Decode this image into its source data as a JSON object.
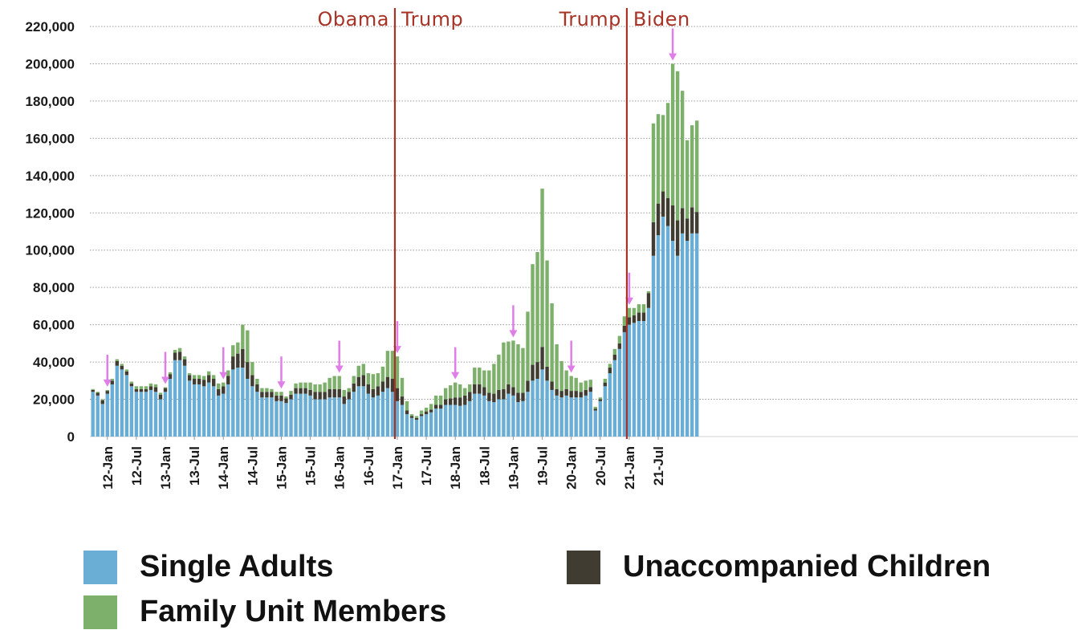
{
  "chart_data": {
    "type": "bar",
    "stacked": true,
    "title": "",
    "xlabel": "",
    "ylabel": "",
    "ylim": [
      0,
      220000
    ],
    "y_ticks": [
      0,
      20000,
      40000,
      60000,
      80000,
      100000,
      120000,
      140000,
      160000,
      180000,
      200000,
      220000
    ],
    "y_tick_labels": [
      "0",
      "20,000",
      "40,000",
      "60,000",
      "80,000",
      "100,000",
      "120,000",
      "140,000",
      "160,000",
      "180,000",
      "200,000",
      "220,000"
    ],
    "grid": "horizontal dotted",
    "x_start": "2011-10",
    "x_end": "2021-10",
    "x_tick_labels": [
      {
        "label": "12-Jan",
        "month": "2012-01"
      },
      {
        "label": "12-Jul",
        "month": "2012-07"
      },
      {
        "label": "13-Jan",
        "month": "2013-01"
      },
      {
        "label": "13-Jul",
        "month": "2013-07"
      },
      {
        "label": "14-Jan",
        "month": "2014-01"
      },
      {
        "label": "14-Jul",
        "month": "2014-07"
      },
      {
        "label": "15-Jan",
        "month": "2015-01"
      },
      {
        "label": "15-Jul",
        "month": "2015-07"
      },
      {
        "label": "16-Jan",
        "month": "2016-01"
      },
      {
        "label": "16-Jul",
        "month": "2016-07"
      },
      {
        "label": "17-Jan",
        "month": "2017-01"
      },
      {
        "label": "17-Jul",
        "month": "2017-07"
      },
      {
        "label": "18-Jan",
        "month": "2018-01"
      },
      {
        "label": "18-Jul",
        "month": "2018-07"
      },
      {
        "label": "19-Jan",
        "month": "2019-01"
      },
      {
        "label": "19-Jul",
        "month": "2019-07"
      },
      {
        "label": "20-Jan",
        "month": "2020-01"
      },
      {
        "label": "20-Jul",
        "month": "2020-07"
      },
      {
        "label": "21-Jan",
        "month": "2021-01"
      },
      {
        "label": "21-Jul",
        "month": "2021-07"
      }
    ],
    "series": [
      {
        "name": "Single Adults",
        "color": "#6aaed6",
        "values": [
          24000,
          22000,
          17500,
          23000,
          28000,
          38000,
          36000,
          33000,
          27000,
          24000,
          24000,
          24000,
          25000,
          24000,
          20000,
          24000,
          31000,
          41000,
          41000,
          38000,
          30000,
          28000,
          28000,
          27000,
          29000,
          27000,
          22000,
          23000,
          28000,
          36000,
          37000,
          37000,
          31000,
          27000,
          24000,
          21000,
          21000,
          21000,
          19000,
          19000,
          18000,
          20000,
          23000,
          23000,
          23000,
          22000,
          20000,
          20000,
          20000,
          21000,
          21000,
          21000,
          17500,
          20000,
          24000,
          27000,
          27000,
          23000,
          21000,
          22000,
          24000,
          26000,
          24000,
          19000,
          17000,
          12000,
          10000,
          9000,
          11000,
          12000,
          13000,
          15000,
          15000,
          17000,
          17000,
          17000,
          16500,
          17000,
          19000,
          23000,
          23000,
          22000,
          19000,
          18500,
          20000,
          20000,
          23000,
          22000,
          18500,
          19000,
          24000,
          30000,
          31000,
          36000,
          30000,
          25000,
          22000,
          21000,
          22000,
          21000,
          21000,
          21000,
          22000,
          24000,
          14000,
          19000,
          27000,
          34000,
          41000,
          47000,
          56000,
          60000,
          61000,
          62000,
          62000,
          69000,
          97000,
          108000,
          118000,
          113000,
          105000,
          97000,
          109000,
          105000,
          109000,
          109000
        ]
      },
      {
        "name": "Unaccompanied Children",
        "color": "#403c32",
        "values": [
          1000,
          1500,
          2000,
          1500,
          2000,
          2500,
          2000,
          2000,
          1500,
          1500,
          1500,
          1500,
          2000,
          2500,
          2500,
          2000,
          2500,
          4000,
          4500,
          3500,
          3000,
          3000,
          3000,
          3500,
          4000,
          4000,
          3500,
          4000,
          4500,
          7000,
          7500,
          10000,
          9000,
          6000,
          4000,
          3000,
          3000,
          3000,
          3000,
          3000,
          2500,
          2500,
          3000,
          3000,
          3000,
          3000,
          4000,
          4000,
          4000,
          4500,
          4500,
          4500,
          4000,
          4000,
          4500,
          5000,
          6000,
          5000,
          4500,
          5000,
          5500,
          6000,
          7000,
          7000,
          4500,
          2000,
          1000,
          1000,
          1000,
          1500,
          1500,
          2000,
          2000,
          3000,
          3500,
          4000,
          4500,
          5000,
          5000,
          5000,
          5000,
          4500,
          4500,
          4500,
          5000,
          5500,
          5000,
          4500,
          5000,
          4500,
          6000,
          8500,
          9000,
          12000,
          7500,
          4500,
          3500,
          3500,
          3500,
          3500,
          3500,
          3000,
          3000,
          2500,
          1000,
          1000,
          2000,
          3000,
          3000,
          3000,
          3500,
          4000,
          4000,
          4500,
          4500,
          8000,
          18000,
          17000,
          13500,
          15000,
          19000,
          19000,
          13500,
          12000,
          14000,
          11500
        ]
      },
      {
        "name": "Family Unit Members",
        "color": "#7db06b",
        "values": [
          500,
          500,
          500,
          500,
          1000,
          1000,
          1000,
          1000,
          1000,
          1500,
          1500,
          1500,
          1500,
          1500,
          1000,
          500,
          1000,
          1500,
          2000,
          1500,
          1000,
          2000,
          2000,
          2000,
          2000,
          2000,
          3000,
          2000,
          3000,
          6000,
          6000,
          13000,
          17000,
          7000,
          3000,
          2000,
          2000,
          1500,
          2000,
          2000,
          1000,
          2000,
          2500,
          3000,
          3000,
          4000,
          4000,
          4000,
          5000,
          6000,
          7000,
          7000,
          3500,
          2000,
          4000,
          6000,
          6000,
          6000,
          8000,
          7000,
          8000,
          14000,
          15000,
          17000,
          10000,
          5000,
          1000,
          1000,
          2000,
          2000,
          3000,
          5000,
          5000,
          6000,
          7000,
          8000,
          7000,
          4000,
          4000,
          9000,
          9000,
          9000,
          12000,
          16000,
          19000,
          25000,
          23000,
          25000,
          26000,
          24000,
          37000,
          54000,
          59000,
          85000,
          57000,
          42000,
          24000,
          16000,
          10000,
          8000,
          7000,
          5000,
          5000,
          4000,
          1000,
          1000,
          2000,
          2000,
          3000,
          4000,
          5000,
          5000,
          4000,
          4500,
          4500,
          1000,
          53000,
          48000,
          41000,
          51000,
          76000,
          80000,
          63000,
          42000,
          44000,
          49000
        ]
      }
    ],
    "eras": [
      {
        "left": "Obama",
        "right": "Trump",
        "boundary": "2017-01"
      },
      {
        "left": "Trump",
        "right": "Biden",
        "boundary": "2021-01"
      }
    ],
    "arrow_markers": [
      "2012-01",
      "2013-01",
      "2014-01",
      "2015-01",
      "2016-01",
      "2017-01",
      "2018-01",
      "2019-01",
      "2020-01",
      "2021-01",
      "2021-10"
    ],
    "era_line_color": "#a83226",
    "arrow_color": "#e07ee8",
    "legend_placement": "bottom"
  }
}
